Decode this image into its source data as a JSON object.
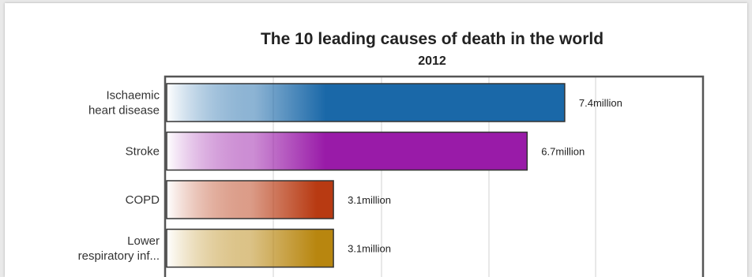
{
  "chart_data": {
    "type": "bar",
    "orientation": "horizontal",
    "title": "The 10 leading causes of death in the world",
    "subtitle": "2012",
    "categories": [
      [
        "Ischaemic",
        "heart disease"
      ],
      [
        "Stroke"
      ],
      [
        "COPD"
      ],
      [
        "Lower",
        "respiratory inf..."
      ]
    ],
    "values": [
      7.4,
      6.7,
      3.1,
      3.1
    ],
    "value_labels": [
      "7.4million",
      "6.7million",
      "3.1million",
      "3.1million"
    ],
    "unit": "million",
    "xlim": [
      0,
      10
    ],
    "grid": true,
    "colors": [
      "#1a68a8",
      "#991ba8",
      "#b83a12",
      "#b8860f"
    ]
  }
}
